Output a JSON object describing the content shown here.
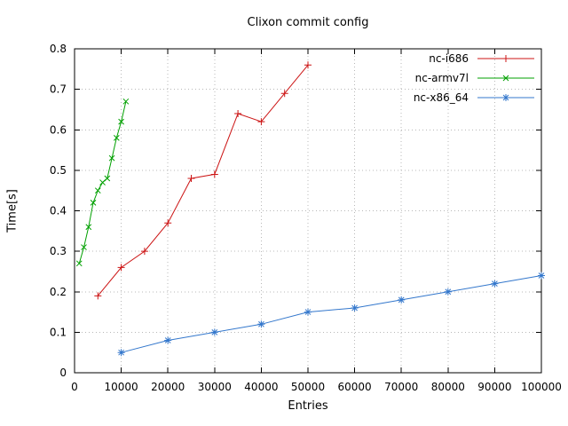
{
  "chart_data": {
    "type": "line",
    "title": "Clixon commit config",
    "xlabel": "Entries",
    "ylabel": "Time[s]",
    "xlim": [
      0,
      100000
    ],
    "ylim": [
      0,
      0.8
    ],
    "xticks": [
      0,
      10000,
      20000,
      30000,
      40000,
      50000,
      60000,
      70000,
      80000,
      90000,
      100000
    ],
    "yticks": [
      0,
      0.1,
      0.2,
      0.3,
      0.4,
      0.5,
      0.6,
      0.7,
      0.8
    ],
    "grid": "dotted",
    "legend_position": "top-right-inside",
    "series": [
      {
        "name": "nc-i686",
        "color": "#cc1414",
        "marker": "plus",
        "x": [
          5000,
          10000,
          15000,
          20000,
          25000,
          30000,
          35000,
          40000,
          45000,
          50000
        ],
        "y": [
          0.19,
          0.26,
          0.3,
          0.37,
          0.48,
          0.49,
          0.64,
          0.62,
          0.69,
          0.76
        ]
      },
      {
        "name": "nc-armv7l",
        "color": "#00a000",
        "marker": "cross",
        "x": [
          1000,
          2000,
          3000,
          4000,
          5000,
          6000,
          7000,
          8000,
          9000,
          10000,
          11000
        ],
        "y": [
          0.27,
          0.31,
          0.36,
          0.42,
          0.45,
          0.47,
          0.48,
          0.53,
          0.58,
          0.62,
          0.67
        ]
      },
      {
        "name": "nc-x86_64",
        "color": "#3377cc",
        "marker": "asterisk",
        "x": [
          10000,
          20000,
          30000,
          40000,
          50000,
          60000,
          70000,
          80000,
          90000,
          100000
        ],
        "y": [
          0.05,
          0.08,
          0.1,
          0.12,
          0.15,
          0.16,
          0.18,
          0.2,
          0.22,
          0.24
        ]
      }
    ]
  }
}
